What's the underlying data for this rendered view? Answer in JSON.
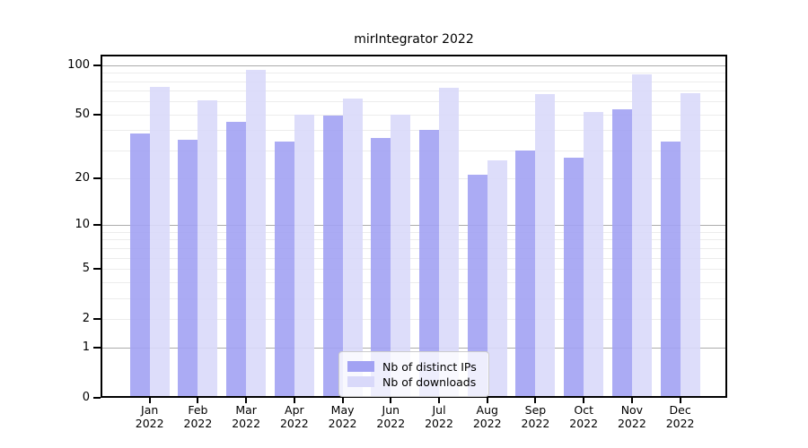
{
  "chart_data": {
    "type": "bar",
    "title": "mirIntegrator 2022",
    "year": "2022",
    "categories": [
      "Jan",
      "Feb",
      "Mar",
      "Apr",
      "May",
      "Jun",
      "Jul",
      "Aug",
      "Sep",
      "Oct",
      "Nov",
      "Dec"
    ],
    "series": [
      {
        "name": "Nb of distinct IPs",
        "color": "#a2a2f3",
        "values": [
          38,
          35,
          45,
          34,
          49,
          36,
          40,
          21,
          30,
          27,
          54,
          34
        ]
      },
      {
        "name": "Nb of downloads",
        "color": "#d9d9fa",
        "values": [
          74,
          61,
          94,
          50,
          63,
          50,
          73,
          26,
          67,
          52,
          88,
          68
        ]
      }
    ],
    "yscale": "log1p",
    "ylim": [
      0,
      130
    ],
    "ytick_values": [
      0,
      1,
      2,
      5,
      10,
      20,
      50,
      100
    ],
    "ytick_labels": [
      "0",
      "1",
      "2",
      "5",
      "10",
      "20",
      "50",
      "100"
    ],
    "minor_grid_values": [
      2,
      3,
      4,
      5,
      6,
      7,
      8,
      9,
      20,
      30,
      40,
      50,
      60,
      70,
      80,
      90
    ],
    "major_grid_values": [
      1,
      10,
      100
    ],
    "grid": true,
    "legend_position": "bottom-center"
  },
  "legend": {
    "items": [
      {
        "label": "Nb of distinct IPs",
        "color": "#a2a2f3"
      },
      {
        "label": "Nb of downloads",
        "color": "#d9d9fa"
      }
    ]
  },
  "colors": {
    "ips_bar": "#a8a8f5",
    "downloads_bar": "#dcdcfa",
    "major_grid": "#ababab",
    "minor_grid": "#ececec",
    "axis": "#000000",
    "legend_border": "#cccccc"
  }
}
